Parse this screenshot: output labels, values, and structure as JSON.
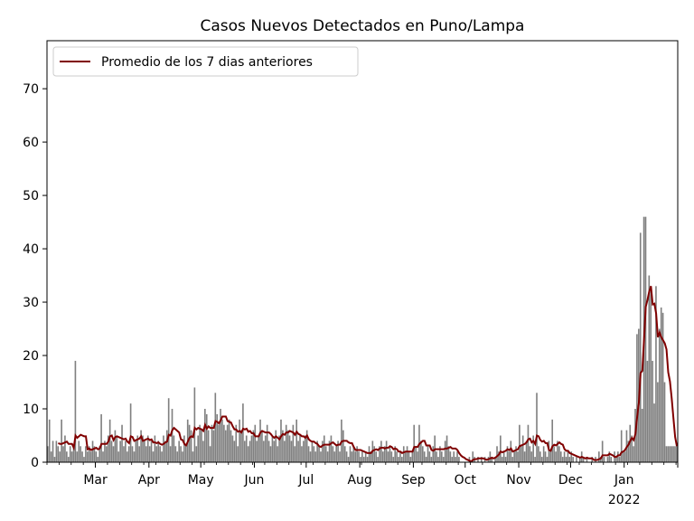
{
  "chart_data": {
    "type": "bar",
    "title": "Casos Nuevos Detectados en Puno/Lampa",
    "xlabel": "",
    "ylabel": "",
    "ylim": [
      0,
      79
    ],
    "yticks": [
      0,
      10,
      20,
      30,
      40,
      50,
      60,
      70
    ],
    "x_start": "2021-02-01",
    "x_end": "2022-01-31",
    "x_month_ticks": [
      "Mar",
      "Apr",
      "May",
      "Jun",
      "Jul",
      "Aug",
      "Sep",
      "Oct",
      "Nov",
      "Dec",
      "Jan"
    ],
    "x_year_label": "2022",
    "legend": {
      "placement": "top-left",
      "entries": [
        "Promedio de los 7 dias anteriores"
      ]
    },
    "colors": {
      "bars": "#808080",
      "line": "#800000",
      "axes": "#000000"
    },
    "series": [
      {
        "type": "bar",
        "daily_cases_by_month": {
          "2021-02": [
            3,
            8,
            2,
            4,
            1,
            4,
            3,
            2,
            8,
            3,
            5,
            2,
            1,
            3,
            2,
            3,
            19,
            2,
            4,
            3,
            2,
            1,
            3,
            2,
            3,
            2,
            4,
            3
          ],
          "2021-03": [
            2,
            1,
            3,
            9,
            2,
            4,
            3,
            5,
            8,
            4,
            3,
            6,
            5,
            2,
            4,
            7,
            3,
            4,
            2,
            3,
            11,
            3,
            2,
            4,
            5,
            3,
            6,
            5,
            4,
            3,
            5
          ],
          "2021-04": [
            3,
            4,
            2,
            5,
            3,
            4,
            3,
            2,
            5,
            4,
            6,
            12,
            3,
            10,
            5,
            3,
            2,
            4,
            3,
            2,
            5,
            3,
            8,
            7,
            6,
            2,
            14,
            3,
            5,
            7
          ],
          "2021-05": [
            6,
            4,
            10,
            9,
            6,
            3,
            7,
            6,
            13,
            9,
            7,
            10,
            8,
            7,
            6,
            7,
            8,
            6,
            5,
            4,
            7,
            3,
            8,
            6,
            11,
            4,
            5,
            3,
            4,
            5,
            6
          ],
          "2021-06": [
            7,
            4,
            5,
            8,
            6,
            4,
            5,
            7,
            4,
            3,
            5,
            4,
            6,
            3,
            5,
            8,
            6,
            4,
            7,
            6,
            5,
            4,
            7,
            3,
            8,
            4,
            5,
            3,
            4,
            5
          ],
          "2021-07": [
            6,
            3,
            2,
            4,
            3,
            2,
            4,
            3,
            2,
            4,
            5,
            3,
            2,
            4,
            5,
            3,
            2,
            3,
            4,
            2,
            8,
            6,
            3,
            2,
            1,
            3,
            2,
            3,
            2,
            3,
            2
          ],
          "2021-08": [
            1,
            2,
            1,
            2,
            1,
            3,
            2,
            4,
            3,
            2,
            1,
            3,
            4,
            2,
            3,
            4,
            2,
            3,
            2,
            1,
            3,
            2,
            1,
            2,
            1,
            3,
            2,
            3,
            2,
            1,
            2
          ],
          "2021-09": [
            7,
            3,
            2,
            7,
            4,
            3,
            2,
            1,
            3,
            2,
            1,
            3,
            5,
            2,
            1,
            3,
            2,
            1,
            4,
            5,
            3,
            2,
            1,
            2,
            1,
            2,
            1,
            0,
            0,
            0
          ],
          "2021-10": [
            0,
            0,
            1,
            0,
            2,
            1,
            0,
            1,
            0,
            1,
            0,
            1,
            0,
            1,
            2,
            1,
            0,
            1,
            3,
            2,
            5,
            1,
            2,
            1,
            3,
            2,
            4,
            1,
            2,
            3,
            2
          ],
          "2021-11": [
            7,
            3,
            5,
            2,
            4,
            7,
            3,
            2,
            5,
            1,
            13,
            3,
            2,
            1,
            3,
            2,
            1,
            4,
            2,
            8,
            3,
            2,
            4,
            3,
            2,
            1,
            2,
            1,
            2,
            1
          ],
          "2021-12": [
            2,
            1,
            0,
            1,
            0,
            1,
            2,
            1,
            0,
            1,
            0,
            0,
            1,
            0,
            1,
            0,
            2,
            1,
            4,
            1,
            0,
            1,
            2,
            1,
            0,
            2,
            1,
            2,
            1,
            6,
            2
          ],
          "2022-01": [
            2,
            6,
            4,
            7,
            5,
            3,
            10,
            24,
            25,
            43,
            10,
            46,
            46,
            19,
            35,
            32,
            19,
            11,
            33,
            15,
            25,
            29,
            28,
            15,
            3,
            3,
            3,
            3,
            3,
            3,
            3
          ]
        }
      },
      {
        "type": "line",
        "name": "Promedio de los 7 dias anteriores"
      }
    ]
  }
}
